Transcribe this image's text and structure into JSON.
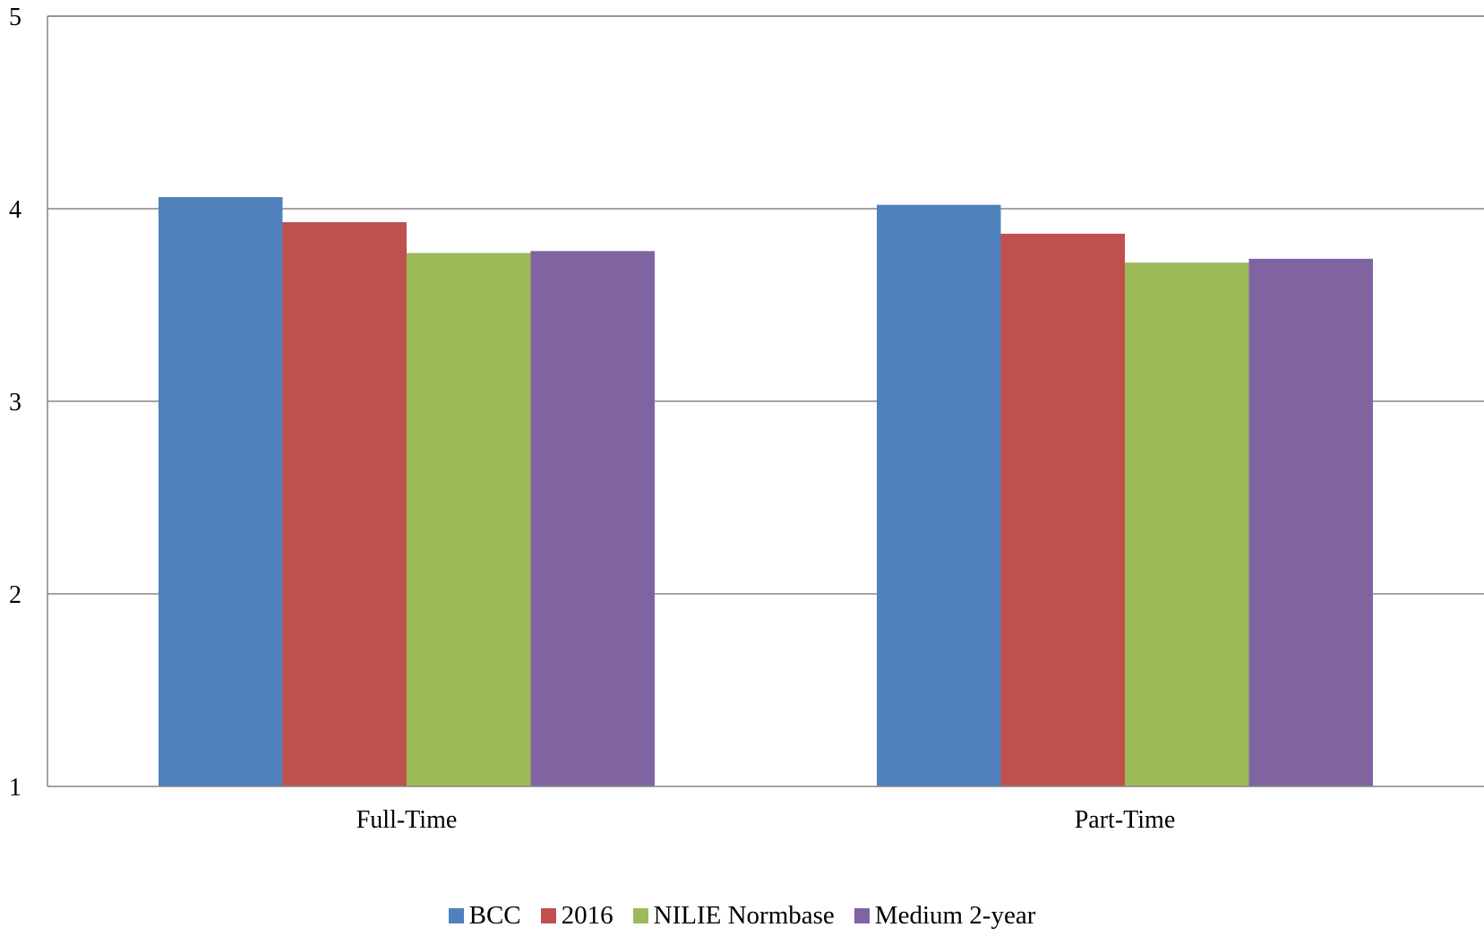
{
  "chart_data": {
    "type": "bar",
    "title": "",
    "xlabel": "",
    "ylabel": "",
    "categories": [
      "Full-Time",
      "Part-Time"
    ],
    "series": [
      {
        "name": "BCC",
        "values": [
          4.06,
          4.02
        ],
        "color": "#4F81BD"
      },
      {
        "name": "2016",
        "values": [
          3.93,
          3.87
        ],
        "color": "#C0504D"
      },
      {
        "name": "NILIE Normbase",
        "values": [
          3.77,
          3.72
        ],
        "color": "#9BBB59"
      },
      {
        "name": "Medium 2-year",
        "values": [
          3.78,
          3.74
        ],
        "color": "#8064A2"
      }
    ],
    "ylim": [
      1,
      5
    ],
    "yticks": [
      "1",
      "2",
      "3",
      "4",
      "5"
    ],
    "grid": true,
    "legend_position": "bottom"
  }
}
